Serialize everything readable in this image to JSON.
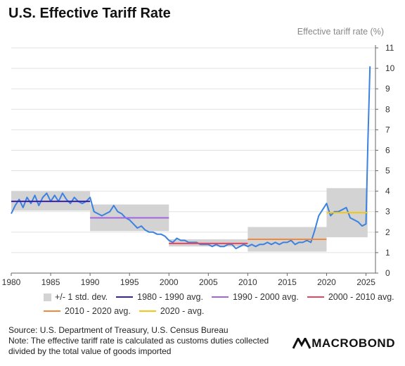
{
  "title": "U.S. Effective Tariff Rate",
  "axis_label": "Effective tariff rate (%)",
  "footer": {
    "source": "Source: U.S. Department of Treasury, U.S. Census Bureau",
    "note_line1": "Note: The effective tariff rate is calculated as customs duties collected",
    "note_line2": "divided by the total value of goods imported"
  },
  "brand": "MACROBOND",
  "legend": [
    {
      "label": "+/- 1 std. dev.",
      "kind": "box",
      "color": "#d3d3d3"
    },
    {
      "label": "1980 - 1990 avg.",
      "kind": "line",
      "color": "#3a1fa8"
    },
    {
      "label": "1990 - 2000 avg.",
      "kind": "line",
      "color": "#a463e0"
    },
    {
      "label": "2000 - 2010 avg.",
      "kind": "line",
      "color": "#e8455e"
    },
    {
      "label": "2010 - 2020 avg.",
      "kind": "line",
      "color": "#f08a3a"
    },
    {
      "label": "2020 - avg.",
      "kind": "line",
      "color": "#f3c713"
    }
  ],
  "chart_data": {
    "type": "line",
    "xlim": [
      1980,
      2026.2
    ],
    "ylim": [
      0,
      11
    ],
    "x_ticks": [
      1980,
      1985,
      1990,
      1995,
      2000,
      2005,
      2010,
      2015,
      2020,
      2025
    ],
    "y_ticks": [
      0,
      1,
      2,
      3,
      4,
      5,
      6,
      7,
      8,
      9,
      10,
      11
    ],
    "y_axis_side": "right",
    "grid": "horizontal",
    "series_color": "#3b82e0",
    "series": [
      {
        "x": [
          1980,
          1980.5,
          1981,
          1981.5,
          1982,
          1982.5,
          1983,
          1983.5,
          1984,
          1984.5,
          1985,
          1985.5,
          1986,
          1986.5,
          1987,
          1987.5,
          1988,
          1988.5,
          1989,
          1989.5,
          1990,
          1990.5,
          1991,
          1991.5,
          1992,
          1992.5,
          1993,
          1993.5,
          1994,
          1994.5,
          1995,
          1995.5,
          1996,
          1996.5,
          1997,
          1997.5,
          1998,
          1998.5,
          1999,
          1999.5,
          2000,
          2000.5,
          2001,
          2001.5,
          2002,
          2002.5,
          2003,
          2003.5,
          2004,
          2004.5,
          2005,
          2005.5,
          2006,
          2006.5,
          2007,
          2007.5,
          2008,
          2008.5,
          2009,
          2009.5,
          2010,
          2010.5,
          2011,
          2011.5,
          2012,
          2012.5,
          2013,
          2013.5,
          2014,
          2014.5,
          2015,
          2015.5,
          2016,
          2016.5,
          2017,
          2017.5,
          2018,
          2018.5,
          2019,
          2019.5,
          2020,
          2020.5,
          2021,
          2021.5,
          2022,
          2022.5,
          2023,
          2023.5,
          2024,
          2024.5,
          2025,
          2025.25,
          2025.5
        ],
        "y": [
          2.9,
          3.3,
          3.6,
          3.2,
          3.7,
          3.4,
          3.8,
          3.3,
          3.7,
          3.9,
          3.5,
          3.8,
          3.5,
          3.9,
          3.6,
          3.4,
          3.7,
          3.5,
          3.4,
          3.5,
          3.7,
          3.0,
          2.9,
          2.8,
          2.9,
          3.0,
          3.3,
          3.0,
          2.9,
          2.7,
          2.6,
          2.4,
          2.2,
          2.3,
          2.1,
          2.0,
          2.0,
          1.9,
          1.9,
          1.8,
          1.6,
          1.5,
          1.7,
          1.6,
          1.6,
          1.5,
          1.5,
          1.5,
          1.4,
          1.4,
          1.4,
          1.3,
          1.4,
          1.3,
          1.3,
          1.4,
          1.4,
          1.2,
          1.3,
          1.4,
          1.3,
          1.4,
          1.3,
          1.4,
          1.4,
          1.5,
          1.4,
          1.5,
          1.4,
          1.5,
          1.5,
          1.6,
          1.4,
          1.5,
          1.5,
          1.6,
          1.5,
          2.1,
          2.8,
          3.1,
          3.4,
          2.8,
          3.0,
          3.0,
          3.1,
          3.2,
          2.7,
          2.6,
          2.5,
          2.3,
          2.4,
          6.5,
          10.1
        ]
      }
    ],
    "period_averages": [
      {
        "label": "1980 - 1990 avg.",
        "from": 1980,
        "to": 1990,
        "mean": 3.5,
        "std_low": 3.05,
        "std_high": 4.0,
        "color": "#3a1fa8"
      },
      {
        "label": "1990 - 2000 avg.",
        "from": 1990,
        "to": 2000,
        "mean": 2.7,
        "std_low": 2.05,
        "std_high": 3.35,
        "color": "#a463e0"
      },
      {
        "label": "2000 - 2010 avg.",
        "from": 2000,
        "to": 2010,
        "mean": 1.45,
        "std_low": 1.3,
        "std_high": 1.65,
        "color": "#e8455e"
      },
      {
        "label": "2010 - 2020 avg.",
        "from": 2010,
        "to": 2020,
        "mean": 1.65,
        "std_low": 1.05,
        "std_high": 2.25,
        "color": "#f08a3a"
      },
      {
        "label": "2020 - avg.",
        "from": 2020,
        "to": 2025.2,
        "mean": 2.95,
        "std_low": 1.75,
        "std_high": 4.15,
        "color": "#f3c713"
      }
    ]
  }
}
